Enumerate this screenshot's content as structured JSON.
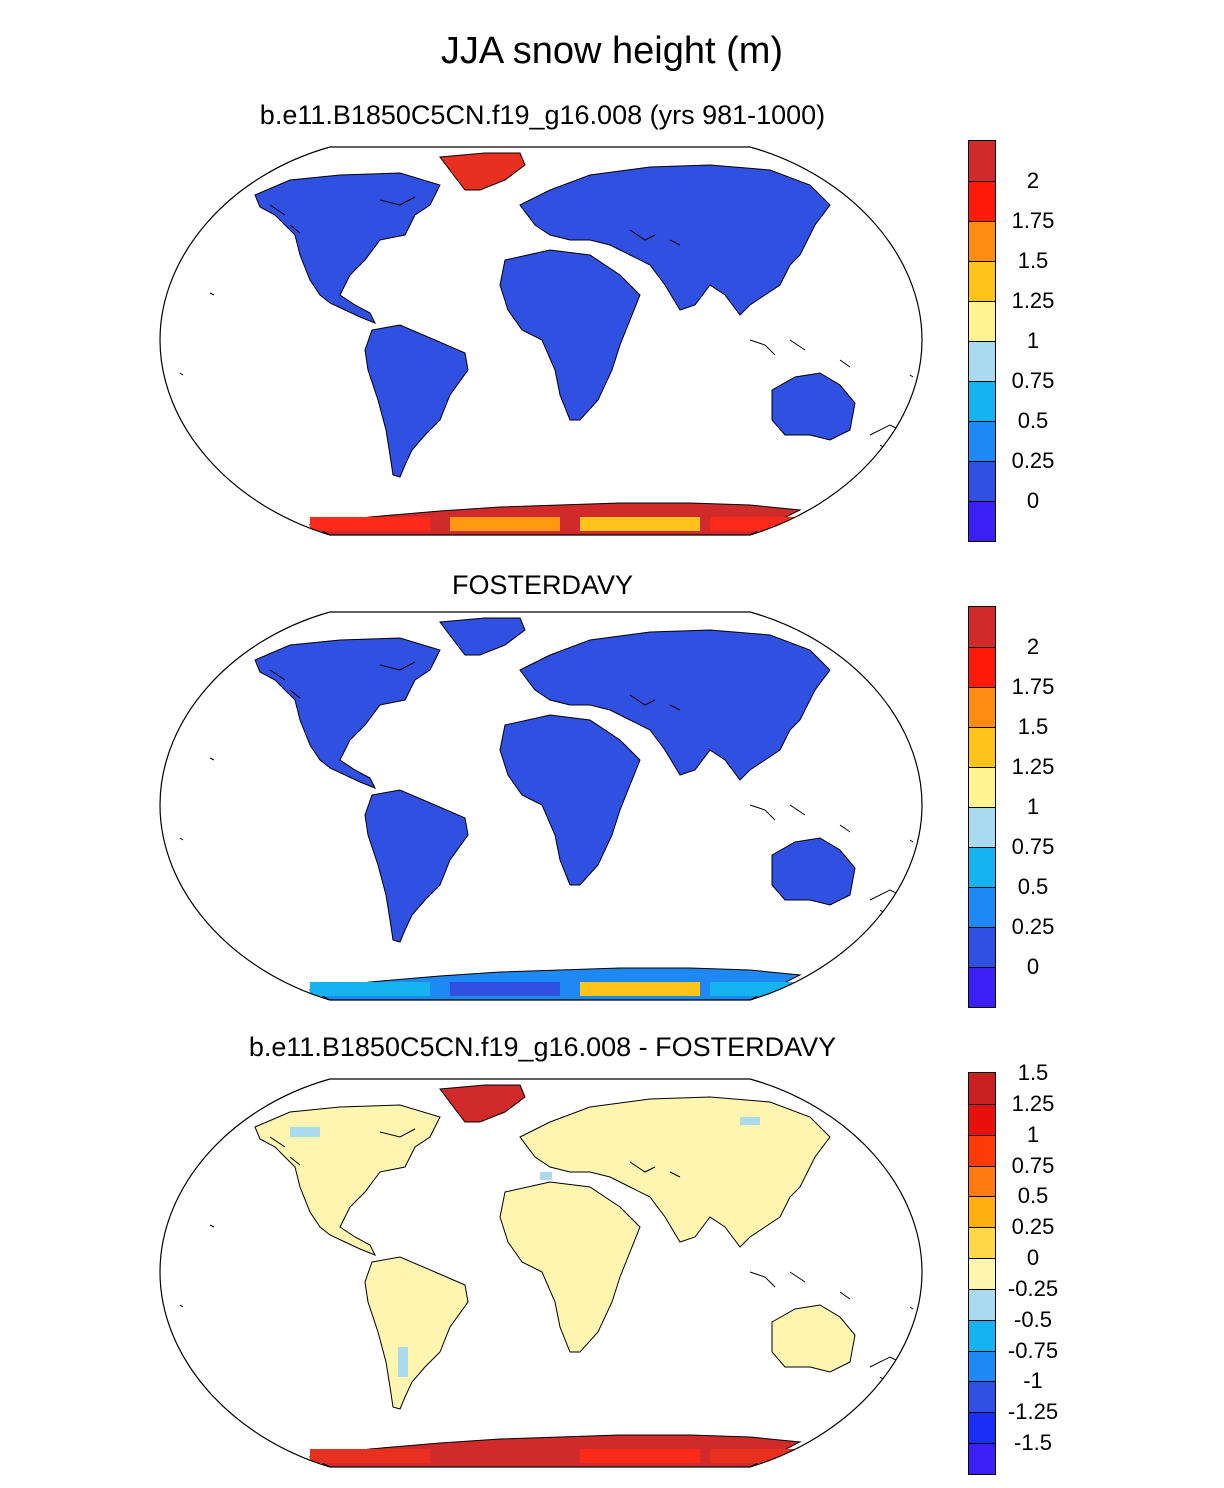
{
  "title": "JJA snow height (m)",
  "panels": [
    {
      "id": "model",
      "title": "b.e11.B1850C5CN.f19_g16.008 (yrs 981-1000)",
      "land_color": "#2f50e0",
      "antarctica_colors": [
        "#d12a2a",
        "#ff2a1a",
        "#ff9a10",
        "#ffc41a"
      ],
      "greenland_color": "#e83020",
      "colorbar": {
        "colors": [
          "#3b1ff5",
          "#2f50e0",
          "#1e88f5",
          "#15b4f0",
          "#aadaf0",
          "#fff392",
          "#ffc41a",
          "#ff8c10",
          "#ff1a0a",
          "#d12a2a"
        ],
        "labels": [
          "0",
          "0.25",
          "0.5",
          "0.75",
          "1",
          "1.25",
          "1.5",
          "1.75",
          "2"
        ]
      }
    },
    {
      "id": "obs",
      "title": "FOSTERDAVY",
      "land_color": "#2f50e0",
      "antarctica_colors": [
        "#1e88f5",
        "#15b4f0",
        "#2f50e0",
        "#ffc41a"
      ],
      "greenland_color": "#2f50e0",
      "colorbar": {
        "colors": [
          "#3b1ff5",
          "#2f50e0",
          "#1e88f5",
          "#15b4f0",
          "#aadaf0",
          "#fff392",
          "#ffc41a",
          "#ff8c10",
          "#ff1a0a",
          "#d12a2a"
        ],
        "labels": [
          "0",
          "0.25",
          "0.5",
          "0.75",
          "1",
          "1.25",
          "1.5",
          "1.75",
          "2"
        ]
      }
    },
    {
      "id": "diff",
      "title": "b.e11.B1850C5CN.f19_g16.008 - FOSTERDAVY",
      "land_color": "#fdf5b0",
      "antarctica_colors": [
        "#d12a2a",
        "#e83020",
        "#d12a2a",
        "#ff2a1a"
      ],
      "greenland_color": "#d12a2a",
      "colorbar": {
        "colors": [
          "#3b1ff5",
          "#1a2ff5",
          "#2f50e0",
          "#1e88f5",
          "#15b4f0",
          "#aadaf0",
          "#fdf5b0",
          "#ffd84a",
          "#ffb010",
          "#ff7a10",
          "#ff3a0a",
          "#e8100a",
          "#c82020"
        ],
        "labels": [
          "-1.5",
          "-1.25",
          "-1",
          "-0.75",
          "-0.5",
          "-0.25",
          "0",
          "0.25",
          "0.5",
          "0.75",
          "1",
          "1.25",
          "1.5"
        ]
      }
    }
  ]
}
